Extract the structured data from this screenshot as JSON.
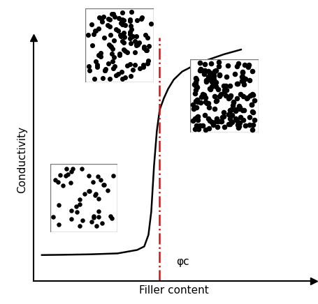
{
  "chart_data": {
    "type": "line",
    "x_label": "Filler content",
    "y_label": "Conductivity",
    "x": [
      3,
      10,
      20,
      30,
      37,
      39.5,
      41,
      42,
      43,
      44,
      45,
      46.5,
      48,
      50,
      53,
      57,
      62,
      68,
      74
    ],
    "values": [
      11.3,
      11.4,
      11.6,
      12,
      13.5,
      15,
      20,
      30,
      50,
      65,
      74,
      79,
      83,
      87,
      90.5,
      93,
      95.5,
      98,
      100
    ],
    "color": "#000000",
    "xlim": [
      0,
      100
    ],
    "ylim": [
      0,
      105
    ],
    "xticks": [],
    "yticks": [],
    "tick_labels": false,
    "threshold": {
      "x": 44.8,
      "label": "φc",
      "color": "#ff0000",
      "line_style": "dashdot"
    }
  }
}
